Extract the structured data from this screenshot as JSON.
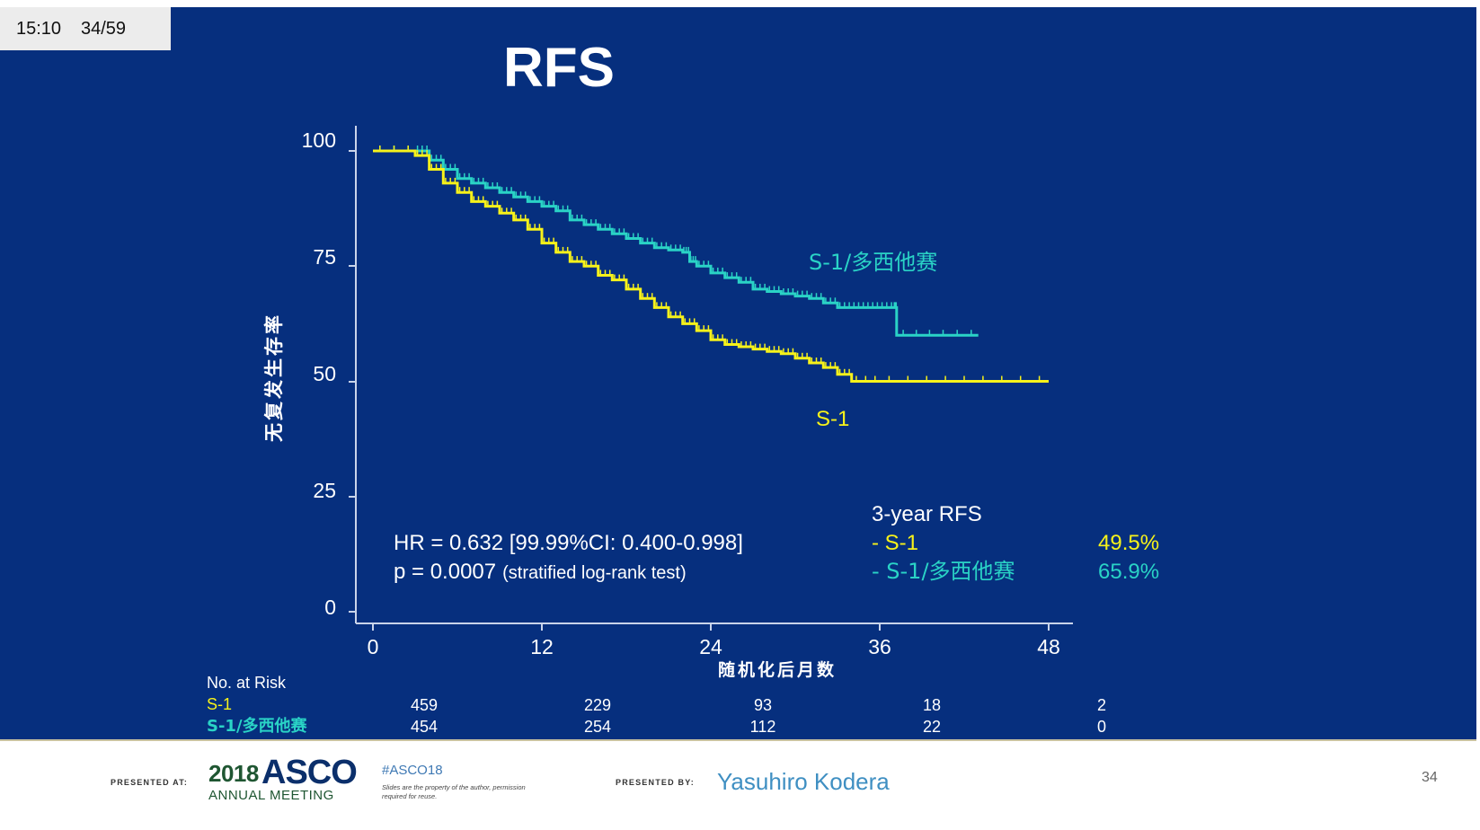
{
  "overlay": {
    "time": "15:10",
    "slide_counter": "34/59"
  },
  "slide": {
    "title": "RFS",
    "colors": {
      "background": "#062f7e",
      "s1": "#f7f21a",
      "s1_docetaxel": "#2ad3c6",
      "text": "#ffffff"
    }
  },
  "chart_data": {
    "type": "line",
    "subtype": "kaplan-meier",
    "title": "RFS",
    "ylabel": "无复发生存率",
    "xlabel": "随机化后月数",
    "xlim": [
      0,
      48
    ],
    "ylim": [
      0,
      100
    ],
    "x_ticks": [
      "0",
      "12",
      "24",
      "36",
      "48"
    ],
    "y_ticks": [
      "0",
      "25",
      "50",
      "75",
      "100"
    ],
    "series": [
      {
        "name": "S-1/多西他赛",
        "color": "#2ad3c6",
        "points": [
          [
            0,
            100
          ],
          [
            3,
            100
          ],
          [
            4,
            98
          ],
          [
            5,
            96
          ],
          [
            6,
            94
          ],
          [
            7,
            93
          ],
          [
            8,
            92
          ],
          [
            9,
            91
          ],
          [
            10,
            90
          ],
          [
            11,
            89
          ],
          [
            12,
            88
          ],
          [
            13,
            87
          ],
          [
            14,
            85
          ],
          [
            15,
            84
          ],
          [
            16,
            83
          ],
          [
            17,
            82
          ],
          [
            18,
            81
          ],
          [
            19,
            80
          ],
          [
            20,
            79
          ],
          [
            21,
            78.5
          ],
          [
            22,
            78
          ],
          [
            22.5,
            76
          ],
          [
            23,
            75
          ],
          [
            24,
            73.5
          ],
          [
            25,
            72.5
          ],
          [
            26,
            71.5
          ],
          [
            27,
            70
          ],
          [
            28,
            69.5
          ],
          [
            29,
            69
          ],
          [
            30,
            68.5
          ],
          [
            31,
            68
          ],
          [
            32,
            67
          ],
          [
            33,
            66
          ],
          [
            34,
            66
          ],
          [
            35,
            66
          ],
          [
            36,
            66
          ],
          [
            37,
            66
          ],
          [
            37.2,
            60
          ],
          [
            40,
            60
          ],
          [
            43,
            60
          ]
        ]
      },
      {
        "name": "S-1",
        "color": "#f7f21a",
        "points": [
          [
            0,
            100
          ],
          [
            3,
            99
          ],
          [
            4,
            96
          ],
          [
            5,
            93
          ],
          [
            6,
            91
          ],
          [
            7,
            89
          ],
          [
            8,
            88
          ],
          [
            9,
            86.5
          ],
          [
            10,
            85
          ],
          [
            11,
            83
          ],
          [
            12,
            80
          ],
          [
            13,
            78
          ],
          [
            14,
            76
          ],
          [
            15,
            75
          ],
          [
            16,
            73
          ],
          [
            17,
            72
          ],
          [
            18,
            70
          ],
          [
            19,
            68
          ],
          [
            20,
            66
          ],
          [
            21,
            64
          ],
          [
            22,
            62.5
          ],
          [
            23,
            61
          ],
          [
            24,
            59
          ],
          [
            25,
            58
          ],
          [
            26,
            57.5
          ],
          [
            27,
            57
          ],
          [
            28,
            56.5
          ],
          [
            29,
            56
          ],
          [
            30,
            55
          ],
          [
            31,
            54
          ],
          [
            32,
            53
          ],
          [
            33,
            51.5
          ],
          [
            34,
            50
          ],
          [
            36,
            50
          ],
          [
            40,
            50
          ],
          [
            44,
            50
          ],
          [
            48,
            50
          ]
        ]
      }
    ],
    "curve_labels": {
      "s1_docetaxel": "S-1/多西他赛",
      "s1": "S-1"
    },
    "annotations": {
      "hr": "HR = 0.632 [99.99%CI: 0.400-0.998]",
      "p_main": "p = 0.0007",
      "p_note": "(stratified log-rank test)",
      "rfs_title": "3-year RFS",
      "rfs_rows": [
        {
          "label": "- S-1",
          "value": "49.5%",
          "color": "#f7f21a"
        },
        {
          "label": "- S-1/多西他赛",
          "value": "65.9%",
          "color": "#2ad3c6"
        }
      ]
    },
    "at_risk": {
      "title": "No. at Risk",
      "rows": [
        {
          "label": "S-1",
          "color": "#f7f21a",
          "values": [
            "459",
            "229",
            "93",
            "18",
            "2"
          ]
        },
        {
          "label": "S-1/多西他赛",
          "color": "#2ad3c6",
          "values": [
            "454",
            "254",
            "112",
            "22",
            "0"
          ]
        }
      ]
    }
  },
  "footer": {
    "presented_at_label": "PRESENTED AT:",
    "asco_year": "2018",
    "asco_name": "ASCO",
    "asco_annual": "ANNUAL MEETING",
    "hashtag": "#ASCO18",
    "disclaimer": "Slides are the property of the author, permission required for reuse.",
    "presented_by_label": "PRESENTED BY:",
    "presenter": "Yasuhiro Kodera",
    "page_number": "34"
  }
}
